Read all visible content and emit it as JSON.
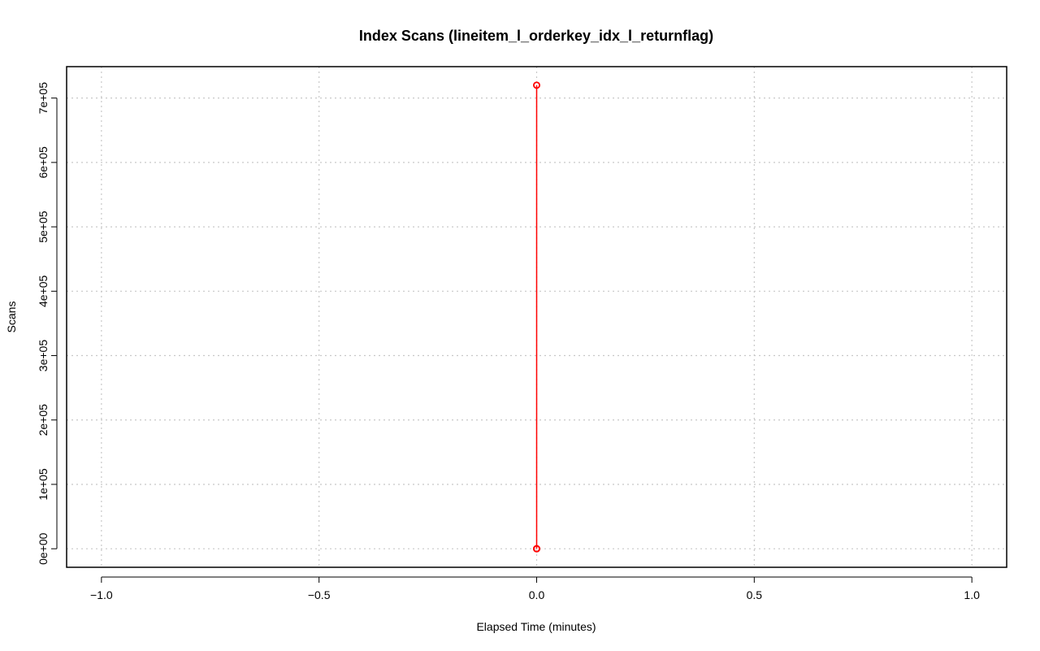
{
  "chart_data": {
    "type": "line",
    "title": "Index Scans (lineitem_l_orderkey_idx_l_returnflag)",
    "xlabel": "Elapsed Time (minutes)",
    "ylabel": "Scans",
    "xlim": [
      -1.08,
      1.08
    ],
    "ylim": [
      -28800,
      748800
    ],
    "x_ticks": [
      -1.0,
      -0.5,
      0.0,
      0.5,
      1.0
    ],
    "x_tick_labels": [
      "−1.0",
      "−0.5",
      "0.0",
      "0.5",
      "1.0"
    ],
    "y_ticks": [
      0,
      100000,
      200000,
      300000,
      400000,
      500000,
      600000,
      700000
    ],
    "y_tick_labels": [
      "0e+00",
      "1e+05",
      "2e+05",
      "3e+05",
      "4e+05",
      "5e+05",
      "6e+05",
      "7e+05"
    ],
    "grid": true,
    "series": [
      {
        "color": "#ff0000",
        "line_style": "dashed",
        "marker": "open-circle",
        "x": [
          0,
          0,
          0
        ],
        "y": [
          0,
          720000,
          0
        ]
      }
    ]
  },
  "colors": {
    "series": "#ff0000",
    "grid": "#c8c8c8",
    "axis": "#000000"
  }
}
